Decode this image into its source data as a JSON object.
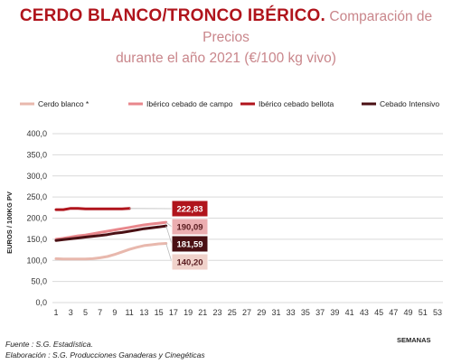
{
  "header": {
    "title_main": "CERDO BLANCO/TRONCO IBÉRICO.",
    "title_sub_1": "Comparación de Precios",
    "title_sub_2": "durante el año 2021 (€/100 kg vivo)"
  },
  "footer": {
    "source": "Fuente : S.G. Estadística.",
    "elaboration": "Elaboración : S.G. Producciones Ganaderas y Cinegéticas"
  },
  "chart_data": {
    "type": "line",
    "xlabel": "SEMANAS",
    "ylabel": "EUROS / 100KG PV",
    "ylim": [
      0,
      400
    ],
    "yticks": [
      0,
      50,
      100,
      150,
      200,
      250,
      300,
      350,
      400
    ],
    "ytick_labels": [
      "0,0",
      "50,0",
      "100,0",
      "150,0",
      "200,0",
      "250,0",
      "300,0",
      "350,0",
      "400,0"
    ],
    "xlim": [
      1,
      53
    ],
    "xticks": [
      1,
      3,
      5,
      7,
      9,
      11,
      13,
      15,
      17,
      19,
      21,
      23,
      25,
      27,
      29,
      31,
      33,
      35,
      37,
      39,
      41,
      43,
      45,
      47,
      49,
      51,
      53
    ],
    "grid": "horizontal",
    "legend_position": "top",
    "series": [
      {
        "name": "Cerdo blanco *",
        "color": "#e8b8ad",
        "x": [
          1,
          2,
          3,
          4,
          5,
          6,
          7,
          8,
          9,
          10,
          11,
          12,
          13,
          14,
          15,
          16
        ],
        "y": [
          104,
          103,
          103,
          103,
          103,
          104,
          106,
          109,
          114,
          120,
          126,
          131,
          135,
          137,
          139,
          140.2
        ],
        "end_label": "140,20"
      },
      {
        "name": "Ibérico cebado de campo",
        "color": "#e8878c",
        "x": [
          1,
          2,
          3,
          4,
          5,
          6,
          7,
          8,
          9,
          10,
          11,
          12,
          13,
          14,
          15,
          16
        ],
        "y": [
          150,
          152,
          155,
          158,
          160,
          163,
          166,
          169,
          172,
          175,
          178,
          181,
          184,
          186,
          188,
          190.09
        ],
        "end_label": "190,09"
      },
      {
        "name": "Ibérico cebado bellota",
        "color": "#b0141c",
        "x": [
          1,
          2,
          3,
          4,
          5,
          6,
          7,
          8,
          9,
          10,
          11
        ],
        "y": [
          220,
          220,
          223,
          223,
          222,
          222,
          222,
          222,
          222,
          222,
          222.83
        ],
        "end_label": "222,83"
      },
      {
        "name": "Cebado Intensivo",
        "color": "#4a1014",
        "x": [
          1,
          2,
          3,
          4,
          5,
          6,
          7,
          8,
          9,
          10,
          11,
          12,
          13,
          14,
          15,
          16
        ],
        "y": [
          147,
          149,
          151,
          153,
          155,
          157,
          159,
          161,
          164,
          166,
          169,
          172,
          175,
          177,
          179,
          181.59
        ],
        "end_label": "181,59"
      }
    ]
  }
}
